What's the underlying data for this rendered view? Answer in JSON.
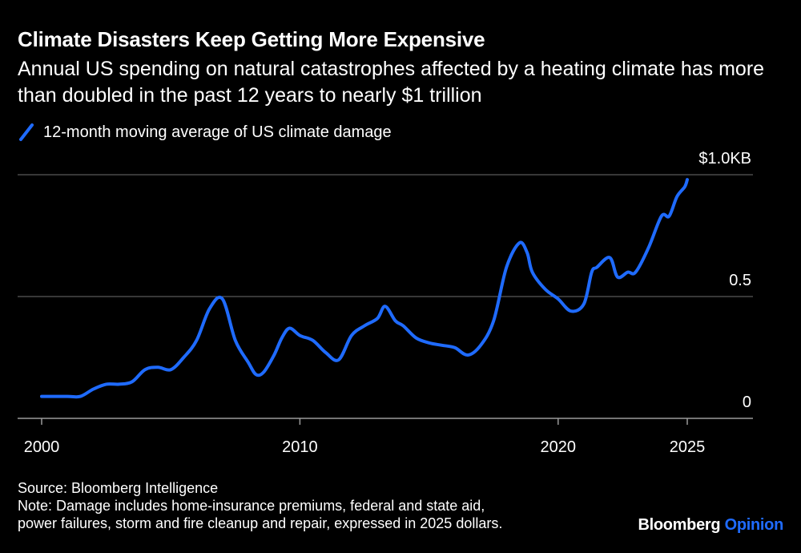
{
  "header": {
    "title": "Climate Disasters Keep Getting More Expensive",
    "subtitle": "Annual US spending on natural catastrophes affected by a heating climate has more than doubled in the past 12 years to nearly $1 trillion"
  },
  "legend": {
    "label": "12-month moving average of US climate damage"
  },
  "footer": {
    "source": "Source: Bloomberg Intelligence",
    "note_line1": "Note: Damage includes home-insurance premiums, federal and state aid,",
    "note_line2": "power failures, storm and fire cleanup and repair, expressed in 2025 dollars."
  },
  "brand": {
    "part1": "Bloomberg",
    "part2": "Opinion"
  },
  "colors": {
    "line": "#1f6bff",
    "grid": "#6e6e6e",
    "background": "#000000",
    "text": "#ffffff"
  },
  "chart_data": {
    "type": "line",
    "title": "Climate Disasters Keep Getting More Expensive",
    "xlabel": "",
    "ylabel": "",
    "xlim": [
      2000,
      2028
    ],
    "ylim": [
      0,
      1.0
    ],
    "x_ticks": [
      2000,
      2010,
      2020,
      2025
    ],
    "x_tick_labels": [
      "2000",
      "2010",
      "2020",
      "2025"
    ],
    "y_ticks": [
      0,
      0.5,
      1.0
    ],
    "y_tick_labels": [
      "0",
      "0.5",
      "$1.0KB"
    ],
    "grid": "horizontal",
    "series": [
      {
        "name": "12-month moving average of US climate damage",
        "x": [
          2000.0,
          2001.0,
          2001.5,
          2002.0,
          2002.5,
          2003.0,
          2003.5,
          2004.0,
          2004.5,
          2005.0,
          2005.5,
          2006.0,
          2006.5,
          2007.0,
          2007.5,
          2008.0,
          2008.3,
          2008.6,
          2009.0,
          2009.3,
          2009.6,
          2010.0,
          2010.5,
          2011.0,
          2011.5,
          2012.0,
          2012.5,
          2013.0,
          2013.3,
          2013.7,
          2014.0,
          2014.5,
          2015.0,
          2015.5,
          2016.0,
          2016.5,
          2017.0,
          2017.5,
          2018.0,
          2018.5,
          2018.8,
          2019.0,
          2019.5,
          2020.0,
          2020.5,
          2021.0,
          2021.3,
          2021.5,
          2022.0,
          2022.3,
          2022.7,
          2023.0,
          2023.5,
          2024.0,
          2024.3,
          2024.6,
          2024.9,
          2025.0
        ],
        "values": [
          0.09,
          0.09,
          0.09,
          0.12,
          0.14,
          0.14,
          0.15,
          0.2,
          0.21,
          0.2,
          0.25,
          0.32,
          0.45,
          0.49,
          0.32,
          0.23,
          0.18,
          0.19,
          0.26,
          0.33,
          0.37,
          0.34,
          0.32,
          0.27,
          0.24,
          0.34,
          0.38,
          0.41,
          0.46,
          0.4,
          0.38,
          0.33,
          0.31,
          0.3,
          0.29,
          0.26,
          0.3,
          0.4,
          0.62,
          0.72,
          0.68,
          0.6,
          0.53,
          0.49,
          0.44,
          0.47,
          0.6,
          0.62,
          0.66,
          0.58,
          0.6,
          0.6,
          0.7,
          0.83,
          0.83,
          0.91,
          0.95,
          0.98
        ]
      }
    ]
  }
}
